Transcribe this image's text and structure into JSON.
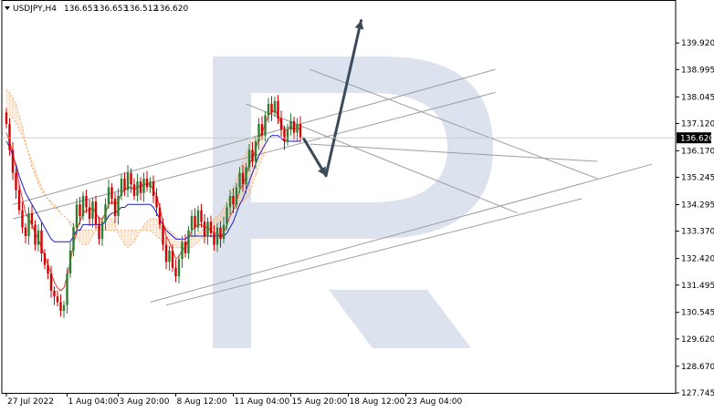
{
  "chart_data": {
    "type": "candlestick",
    "title": "USDJPY,H4",
    "header_values": [
      "136.653",
      "136.653",
      "136.512",
      "136.620"
    ],
    "current_price": 136.62,
    "current_price_label": "136.620",
    "ylim": [
      127.745,
      140.845
    ],
    "y_ticks": [
      "139.920",
      "138.995",
      "138.045",
      "137.120",
      "136.170",
      "135.245",
      "134.295",
      "133.370",
      "132.420",
      "131.495",
      "130.545",
      "129.620",
      "128.670",
      "127.745"
    ],
    "x_ticks": [
      {
        "label": "27 Jul 2022",
        "bar": 0
      },
      {
        "label": "1 Aug 04:00",
        "bar": 19
      },
      {
        "label": "3 Aug 20:00",
        "bar": 35
      },
      {
        "label": "8 Aug 12:00",
        "bar": 53
      },
      {
        "label": "11 Aug 04:00",
        "bar": 71
      },
      {
        "label": "15 Aug 20:00",
        "bar": 89
      },
      {
        "label": "18 Aug 12:00",
        "bar": 107
      },
      {
        "label": "23 Aug 04:00",
        "bar": 125
      }
    ],
    "colors": {
      "bull": "#2e7d32",
      "bear": "#d50000",
      "tenkan": "#e53935",
      "kijun": "#1a1ad0",
      "cloud": "#f4a460",
      "trend": "#9e9e9e",
      "forecast": "#3a4a5a",
      "watermark": "#dde3ee"
    },
    "candles_close": [
      137.1,
      136.2,
      135.4,
      134.8,
      134.1,
      133.5,
      133.2,
      134.0,
      133.6,
      132.9,
      133.4,
      132.6,
      132.2,
      131.9,
      131.3,
      131.1,
      130.9,
      130.6,
      130.8,
      131.9,
      132.7,
      133.5,
      134.3,
      133.9,
      134.6,
      134.2,
      133.8,
      134.4,
      133.6,
      133.1,
      133.7,
      134.3,
      134.9,
      134.5,
      133.9,
      134.6,
      135.2,
      134.8,
      135.4,
      135.0,
      134.6,
      135.1,
      134.7,
      135.2,
      134.9,
      135.1,
      134.6,
      134.2,
      133.6,
      132.9,
      132.3,
      132.7,
      132.1,
      131.8,
      132.4,
      133.0,
      132.6,
      133.4,
      133.9,
      133.5,
      134.1,
      133.7,
      133.2,
      133.7,
      133.3,
      132.9,
      133.5,
      133.1,
      133.6,
      134.2,
      134.6,
      134.3,
      134.9,
      135.4,
      135.0,
      135.6,
      136.2,
      135.8,
      136.5,
      137.1,
      136.7,
      137.4,
      137.8,
      137.5,
      137.9,
      137.3,
      136.9,
      136.5,
      136.9,
      137.2,
      136.8,
      137.1,
      136.62
    ],
    "tenkan_sen": [
      136.8,
      136.5,
      136.1,
      135.6,
      135.0,
      134.5,
      134.0,
      133.8,
      133.6,
      133.3,
      133.1,
      132.8,
      132.5,
      132.2,
      131.9,
      131.6,
      131.4,
      131.3,
      131.4,
      131.8,
      132.3,
      132.9,
      133.4,
      133.7,
      134.0,
      134.1,
      134.1,
      134.2,
      134.0,
      133.8,
      133.8,
      134.0,
      134.3,
      134.4,
      134.3,
      134.4,
      134.7,
      134.8,
      134.9,
      134.9,
      134.8,
      134.9,
      134.9,
      135.0,
      135.0,
      135.0,
      134.8,
      134.6,
      134.2,
      133.7,
      133.2,
      133.0,
      132.7,
      132.4,
      132.5,
      132.7,
      132.8,
      133.1,
      133.4,
      133.5,
      133.6,
      133.6,
      133.5,
      133.5,
      133.4,
      133.3,
      133.3,
      133.2,
      133.3,
      133.6,
      133.9,
      134.1,
      134.4,
      134.8,
      135.0,
      135.3,
      135.7,
      135.9,
      136.2,
      136.6,
      136.8,
      137.1,
      137.4,
      137.5,
      137.6,
      137.4,
      137.1,
      136.9,
      136.9,
      137.0,
      136.9,
      137.0,
      136.9
    ],
    "kijun_sen": [
      136.5,
      136.3,
      136.0,
      135.7,
      135.3,
      135.0,
      134.7,
      134.5,
      134.3,
      134.1,
      133.9,
      133.7,
      133.5,
      133.3,
      133.1,
      133.0,
      133.0,
      133.0,
      133.0,
      133.0,
      133.0,
      133.2,
      133.4,
      133.4,
      133.6,
      133.6,
      133.6,
      133.6,
      133.6,
      133.6,
      133.6,
      133.7,
      133.9,
      134.0,
      134.0,
      134.1,
      134.2,
      134.2,
      134.3,
      134.3,
      134.3,
      134.3,
      134.3,
      134.3,
      134.3,
      134.3,
      134.2,
      134.0,
      133.8,
      133.6,
      133.4,
      133.3,
      133.2,
      133.1,
      133.1,
      133.1,
      133.1,
      133.2,
      133.2,
      133.2,
      133.2,
      133.2,
      133.2,
      133.2,
      133.2,
      133.2,
      133.2,
      133.2,
      133.2,
      133.3,
      133.5,
      133.7,
      134.0,
      134.3,
      134.5,
      134.8,
      135.1,
      135.4,
      135.7,
      136.0,
      136.2,
      136.4,
      136.6,
      136.7,
      136.7,
      136.7,
      136.6,
      136.5,
      136.5,
      136.5,
      136.5,
      136.5,
      136.5
    ],
    "cloud_a": [
      138.3,
      138.2,
      138.0,
      137.8,
      137.4,
      137.0,
      136.5,
      136.0,
      135.6,
      135.3,
      135.0,
      134.8,
      134.6,
      134.5,
      134.4,
      134.3,
      134.2,
      134.0,
      133.9,
      133.8,
      133.6,
      133.4,
      133.2,
      133.0,
      132.9,
      132.9,
      133.0,
      133.2,
      133.4,
      133.6,
      133.8,
      133.9,
      133.9,
      133.8,
      133.6,
      133.3,
      133.1,
      132.9,
      132.8,
      132.9,
      133.0,
      133.2,
      133.4,
      133.6,
      133.7,
      133.8,
      133.8,
      133.8,
      133.7,
      133.6,
      133.5,
      133.4,
      133.3,
      133.2,
      133.1,
      133.0,
      133.0,
      133.0,
      133.1,
      133.2,
      133.3,
      133.4,
      133.5,
      133.6,
      133.7,
      133.8,
      133.9,
      134.0,
      134.2,
      134.4,
      134.6,
      134.9,
      135.2,
      135.5,
      135.8,
      136.1,
      136.4,
      136.6,
      136.7,
      136.7,
      136.8,
      136.8
    ],
    "cloud_b": [
      137.5,
      137.4,
      137.3,
      137.1,
      136.9,
      136.7,
      136.4,
      136.1,
      135.8,
      135.5,
      135.2,
      134.9,
      134.7,
      134.5,
      134.3,
      134.2,
      134.1,
      134.0,
      133.9,
      133.8,
      133.7,
      133.6,
      133.5,
      133.4,
      133.4,
      133.4,
      133.4,
      133.4,
      133.4,
      133.4,
      133.4,
      133.4,
      133.4,
      133.4,
      133.4,
      133.4,
      133.4,
      133.4,
      133.4,
      133.4,
      133.4,
      133.4,
      133.4,
      133.4,
      133.4,
      133.4,
      133.3,
      133.2,
      133.1,
      133.0,
      132.9,
      132.8,
      132.8,
      132.8,
      132.8,
      132.8,
      132.8,
      132.8,
      132.8,
      132.9,
      133.0,
      133.1,
      133.2,
      133.3,
      133.4,
      133.5,
      133.6,
      133.7,
      133.8,
      133.9,
      134.0,
      134.1,
      134.2,
      134.3,
      134.4,
      134.5,
      134.6,
      135.0,
      135.3,
      135.6,
      135.9,
      136.1
    ],
    "trend_lines": [
      {
        "p1": [
          2,
          134.3
        ],
        "p2": [
          153,
          139.0
        ]
      },
      {
        "p1": [
          2,
          133.8
        ],
        "p2": [
          153,
          138.2
        ]
      },
      {
        "p1": [
          45,
          130.9
        ],
        "p2": [
          202,
          135.7
        ]
      },
      {
        "p1": [
          50,
          130.8
        ],
        "p2": [
          180,
          134.5
        ]
      },
      {
        "p1": [
          95,
          139.0
        ],
        "p2": [
          185,
          135.2
        ]
      },
      {
        "p1": [
          75,
          137.8
        ],
        "p2": [
          160,
          134.0
        ]
      },
      {
        "p1": [
          95,
          136.4
        ],
        "p2": [
          185,
          135.8
        ]
      }
    ],
    "forecast": [
      {
        "bar": 93,
        "price": 136.6
      },
      {
        "bar": 100,
        "price": 135.3
      },
      {
        "bar": 111,
        "price": 140.7
      }
    ],
    "watermark": "R"
  }
}
